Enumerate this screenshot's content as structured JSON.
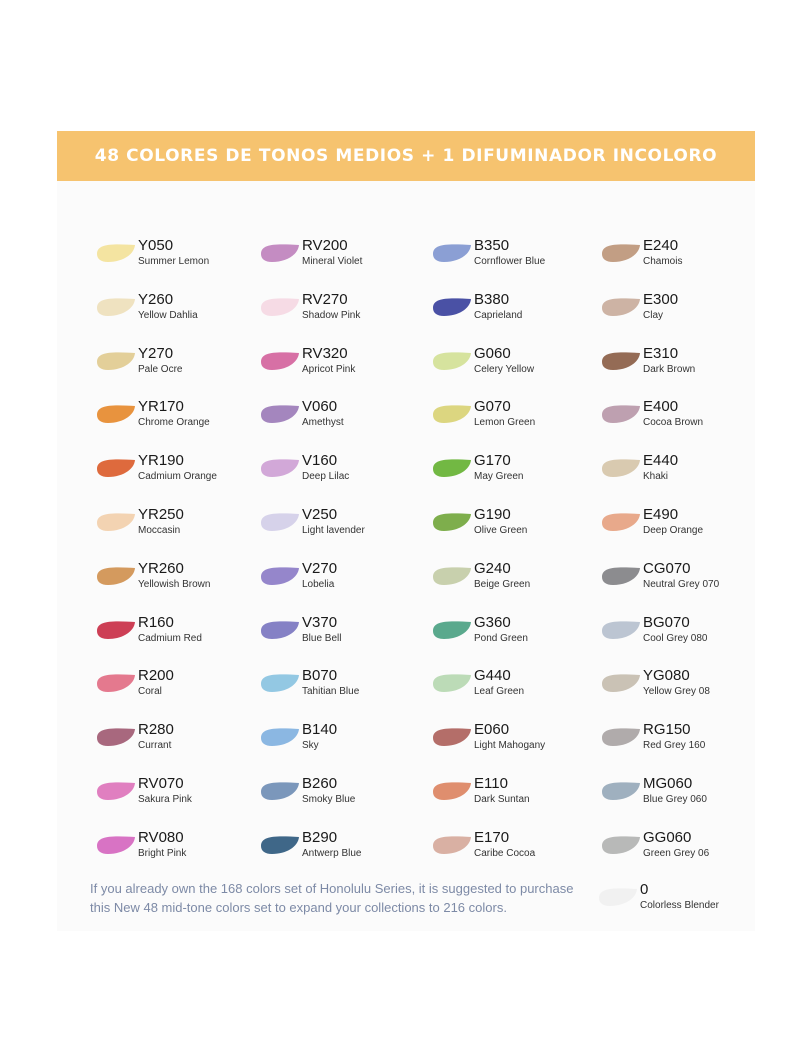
{
  "banner": {
    "title": "48 COLORES DE TONOS MEDIOS + 1 DIFUMINADOR INCOLORO"
  },
  "columns": [
    [
      {
        "code": "Y050",
        "name": "Summer Lemon",
        "color": "#f4e4a1"
      },
      {
        "code": "Y260",
        "name": "Yellow Dahlia",
        "color": "#efe2c0"
      },
      {
        "code": "Y270",
        "name": "Pale Ocre",
        "color": "#e3cf99"
      },
      {
        "code": "YR170",
        "name": "Chrome Orange",
        "color": "#e8933e"
      },
      {
        "code": "YR190",
        "name": "Cadmium Orange",
        "color": "#de6a3d"
      },
      {
        "code": "YR250",
        "name": "Moccasin",
        "color": "#f3d3b2"
      },
      {
        "code": "YR260",
        "name": "Yellowish Brown",
        "color": "#d49a5e"
      },
      {
        "code": "R160",
        "name": "Cadmium Red",
        "color": "#cd3f55"
      },
      {
        "code": "R200",
        "name": "Coral",
        "color": "#e4798e"
      },
      {
        "code": "R280",
        "name": "Currant",
        "color": "#a8687e"
      },
      {
        "code": "RV070",
        "name": "Sakura Pink",
        "color": "#e07fc0"
      },
      {
        "code": "RV080",
        "name": "Bright Pink",
        "color": "#d873c4"
      }
    ],
    [
      {
        "code": "RV200",
        "name": "Mineral Violet",
        "color": "#c48cc2"
      },
      {
        "code": "RV270",
        "name": "Shadow Pink",
        "color": "#f6dbe5"
      },
      {
        "code": "RV320",
        "name": "Apricot Pink",
        "color": "#d770a5"
      },
      {
        "code": "V060",
        "name": "Amethyst",
        "color": "#a486be"
      },
      {
        "code": "V160",
        "name": "Deep Lilac",
        "color": "#d2a8d8"
      },
      {
        "code": "V250",
        "name": "Light lavender",
        "color": "#d6d2ea"
      },
      {
        "code": "V270",
        "name": "Lobelia",
        "color": "#9586cb"
      },
      {
        "code": "V370",
        "name": "Blue Bell",
        "color": "#8581c5"
      },
      {
        "code": "B070",
        "name": "Tahitian Blue",
        "color": "#93c8e3"
      },
      {
        "code": "B140",
        "name": "Sky",
        "color": "#8bb7e2"
      },
      {
        "code": "B260",
        "name": "Smoky Blue",
        "color": "#7b97bb"
      },
      {
        "code": "B290",
        "name": "Antwerp Blue",
        "color": "#3f6788"
      }
    ],
    [
      {
        "code": "B350",
        "name": "Cornflower Blue",
        "color": "#8b9fd4"
      },
      {
        "code": "B380",
        "name": "Caprieland",
        "color": "#4a51a5"
      },
      {
        "code": "G060",
        "name": "Celery Yellow",
        "color": "#d6e39e"
      },
      {
        "code": "G070",
        "name": "Lemon Green",
        "color": "#dcd680"
      },
      {
        "code": "G170",
        "name": "May Green",
        "color": "#72b843"
      },
      {
        "code": "G190",
        "name": "Olive Green",
        "color": "#7eae4c"
      },
      {
        "code": "G240",
        "name": "Beige Green",
        "color": "#c8d0ad"
      },
      {
        "code": "G360",
        "name": "Pond Green",
        "color": "#5aa98d"
      },
      {
        "code": "G440",
        "name": "Leaf Green",
        "color": "#bcdbb7"
      },
      {
        "code": "E060",
        "name": "Light Mahogany",
        "color": "#b46e69"
      },
      {
        "code": "E110",
        "name": "Dark Suntan",
        "color": "#df8e6e"
      },
      {
        "code": "E170",
        "name": "Caribe Cocoa",
        "color": "#d9b0a3"
      }
    ],
    [
      {
        "code": "E240",
        "name": "Chamois",
        "color": "#c29e84"
      },
      {
        "code": "E300",
        "name": "Clay",
        "color": "#cdb3a4"
      },
      {
        "code": "E310",
        "name": "Dark Brown",
        "color": "#946b55"
      },
      {
        "code": "E400",
        "name": "Cocoa Brown",
        "color": "#bea0b0"
      },
      {
        "code": "E440",
        "name": "Khaki",
        "color": "#d9cab0"
      },
      {
        "code": "E490",
        "name": "Deep Orange",
        "color": "#e8a98b"
      },
      {
        "code": "CG070",
        "name": "Neutral Grey 070",
        "color": "#8c8c8f"
      },
      {
        "code": "BG070",
        "name": "Cool Grey 080",
        "color": "#bcc5d2"
      },
      {
        "code": "YG080",
        "name": "Yellow Grey 08",
        "color": "#cac2b5"
      },
      {
        "code": "RG150",
        "name": "Red Grey 160",
        "color": "#b0abab"
      },
      {
        "code": "MG060",
        "name": "Blue Grey 060",
        "color": "#9fb0bf"
      },
      {
        "code": "GG060",
        "name": "Green Grey 06",
        "color": "#b8b9b8"
      }
    ]
  ],
  "blender": {
    "code": "0",
    "name": "Colorless Blender",
    "color": "#f1f1f1"
  },
  "footnote": {
    "line1": "If you already own the 168 colors set of Honolulu Series, it is suggested to purchase",
    "line2": "this New 48 mid-tone colors set to expand your collections to 216 colors."
  }
}
